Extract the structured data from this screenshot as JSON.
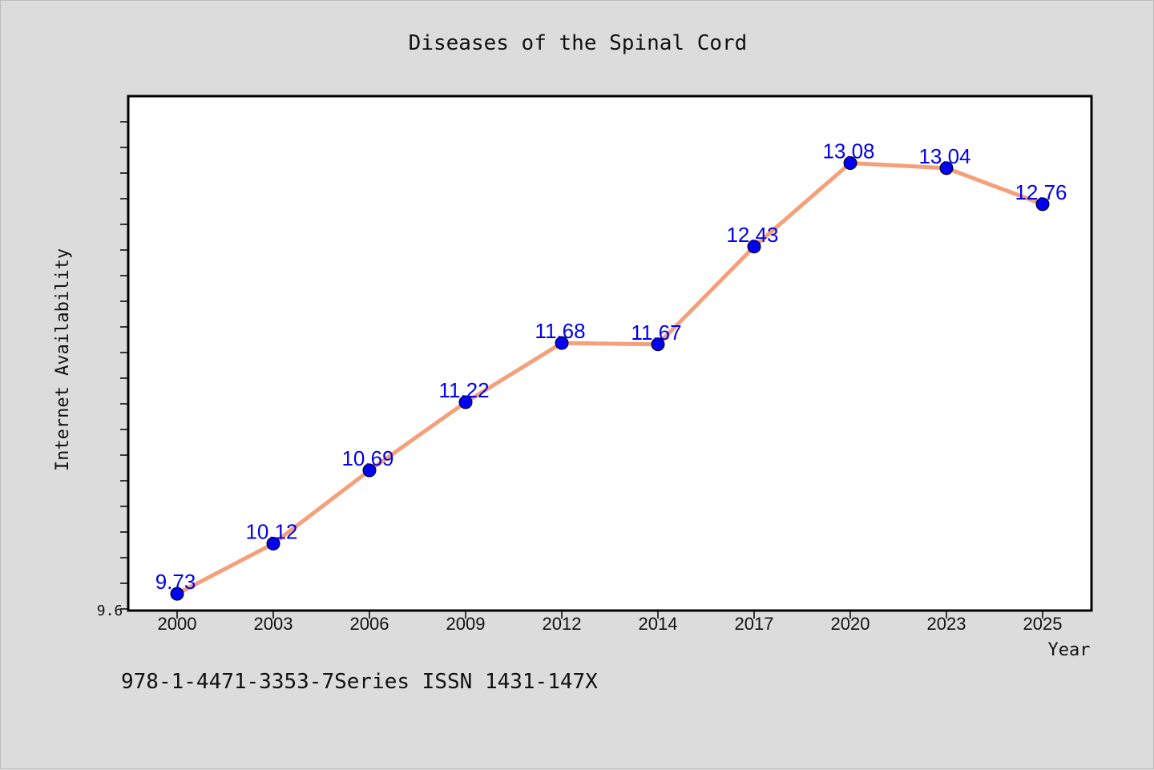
{
  "chart_data": {
    "type": "line",
    "title": "Diseases of the Spinal Cord",
    "xlabel": "Year",
    "ylabel": "Internet Availability",
    "categories": [
      "2000",
      "2003",
      "2006",
      "2009",
      "2012",
      "2014",
      "2017",
      "2020",
      "2023",
      "2025"
    ],
    "series": [
      {
        "values": [
          9.73,
          10.12,
          10.69,
          11.22,
          11.68,
          11.67,
          12.43,
          13.08,
          13.04,
          12.76
        ],
        "data_labels": [
          "9.73",
          "10.12",
          "10.69",
          "11.22",
          "11.68",
          "11.67",
          "12.43",
          "13.08",
          "13.04",
          "12.76"
        ]
      }
    ],
    "y_tick_labels": [
      "9.6"
    ],
    "ylim": [
      9.6,
      13.6
    ],
    "grid": false,
    "colors": {
      "line": "#f4a07a",
      "marker": "#0000ee",
      "label": "#0000ee",
      "plot_bg": "#ffffff",
      "page_bg": "#dcdcdc"
    }
  },
  "footer": {
    "text": "978-1-4471-3353-7Series ISSN 1431-147X"
  }
}
